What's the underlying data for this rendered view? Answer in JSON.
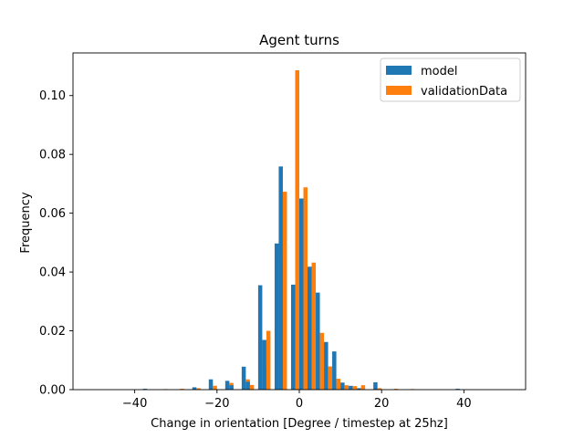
{
  "chart_data": {
    "type": "bar",
    "title": "Agent turns",
    "xlabel": "Change in orientation [Degree / timestep at 25hz]",
    "ylabel": "Frequency",
    "xlim": [
      -55,
      55
    ],
    "ylim": [
      0,
      0.1145
    ],
    "xticks": [
      -40,
      -20,
      0,
      20,
      40
    ],
    "xtick_labels": [
      "−40",
      "−20",
      "0",
      "20",
      "40"
    ],
    "yticks": [
      0.0,
      0.02,
      0.04,
      0.06,
      0.08,
      0.1
    ],
    "ytick_labels": [
      "0.00",
      "0.02",
      "0.04",
      "0.06",
      "0.08",
      "0.10"
    ],
    "bin_width": 4,
    "bin_centers": [
      -49,
      -45,
      -41,
      -37,
      -33,
      -29,
      -25,
      -21,
      -17,
      -13,
      -9,
      -5,
      -1,
      3,
      7,
      11,
      15,
      19,
      23,
      27,
      31,
      35,
      39,
      43,
      47
    ],
    "grid": false,
    "legend_position": "top-right",
    "series": [
      {
        "name": "model",
        "color": "#1f77b4",
        "values": [
          0.0,
          0.0,
          0.0,
          0.0003,
          0.0,
          0.0,
          0.0008,
          0.0035,
          0.003,
          0.0078,
          0.0355,
          0.0497,
          0.0357,
          0.0418,
          0.0162,
          0.0024,
          0.0005,
          0.0025,
          0.0,
          0.0,
          0.0,
          0.0,
          0.0003,
          0.0,
          0.0
        ]
      },
      {
        "name": "validationData",
        "color": "#ff7f0e",
        "values": [
          0.0,
          0.0,
          0.0,
          0.0,
          0.0002,
          0.0003,
          0.0005,
          0.0013,
          0.0023,
          0.0035,
          0.0078,
          0.0437,
          0.1086,
          0.0432,
          0.0079,
          0.0015,
          0.0015,
          0.0005,
          0.0003,
          0.0002,
          0.0,
          0.0,
          0.0,
          0.0,
          0.0
        ]
      }
    ],
    "model_extra_bars": [
      {
        "x_center": -4.5,
        "value": 0.0759
      },
      {
        "x_center": 0.5,
        "value": 0.065
      },
      {
        "x_center": 4.5,
        "value": 0.033
      },
      {
        "x_center": -8.5,
        "value": 0.0169
      },
      {
        "x_center": 8.5,
        "value": 0.013
      },
      {
        "x_center": -12.5,
        "value": 0.0027
      },
      {
        "x_center": -16.5,
        "value": 0.0015
      },
      {
        "x_center": 12.5,
        "value": 0.0013
      }
    ],
    "validation_extra_bars": [
      {
        "x_center": -3.5,
        "value": 0.0673
      },
      {
        "x_center": 1.5,
        "value": 0.0688
      },
      {
        "x_center": -7.5,
        "value": 0.02
      },
      {
        "x_center": 5.5,
        "value": 0.0193
      },
      {
        "x_center": 9.5,
        "value": 0.0037
      },
      {
        "x_center": -11.5,
        "value": 0.0016
      },
      {
        "x_center": 13.5,
        "value": 0.0012
      }
    ]
  }
}
